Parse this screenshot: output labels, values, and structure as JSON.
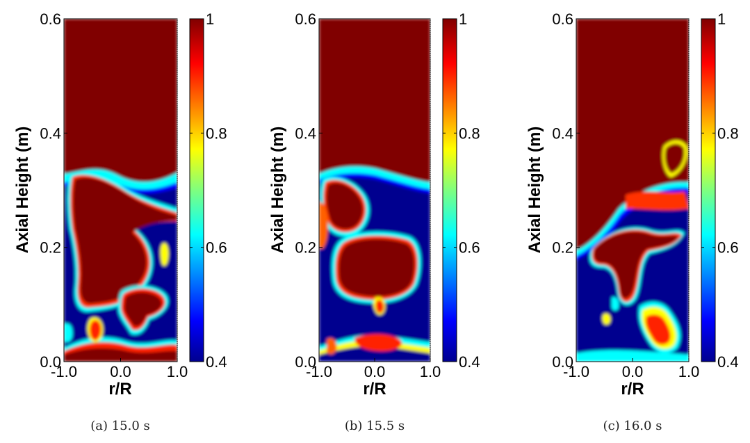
{
  "chart_data": [
    {
      "type": "heatmap",
      "caption": "(a) 15.0 s",
      "xlabel": "r/R",
      "ylabel": "Axial Height (m)",
      "xlim": [
        -1.0,
        1.0
      ],
      "ylim": [
        0.0,
        0.6
      ],
      "x_ticks": [
        "-1.0",
        "0.0",
        "1.0"
      ],
      "y_ticks": [
        "0.0",
        "0.2",
        "0.4",
        "0.6"
      ],
      "colorbar": {
        "range": [
          0.4,
          1.0
        ],
        "ticks": [
          "0.4",
          "0.6",
          "0.8",
          "1"
        ]
      },
      "colormap": "jet"
    },
    {
      "type": "heatmap",
      "caption": "(b) 15.5 s",
      "xlabel": "r/R",
      "ylabel": "Axial Height (m)",
      "xlim": [
        -1.0,
        1.0
      ],
      "ylim": [
        0.0,
        0.6
      ],
      "x_ticks": [
        "-1.0",
        "0.0",
        "1.0"
      ],
      "y_ticks": [
        "0.0",
        "0.2",
        "0.4",
        "0.6"
      ],
      "colorbar": {
        "range": [
          0.4,
          1.0
        ],
        "ticks": [
          "0.4",
          "0.6",
          "0.8",
          "1"
        ]
      },
      "colormap": "jet"
    },
    {
      "type": "heatmap",
      "caption": "(c) 16.0 s",
      "xlabel": "r/R",
      "ylabel": "Axial Height (m)",
      "xlim": [
        -1.0,
        1.0
      ],
      "ylim": [
        0.0,
        0.6
      ],
      "x_ticks": [
        "-1.0",
        "0.0",
        "1.0"
      ],
      "y_ticks": [
        "0.0",
        "0.2",
        "0.4",
        "0.6"
      ],
      "colorbar": {
        "range": [
          0.4,
          1.0
        ],
        "ticks": [
          "0.4",
          "0.6",
          "0.8",
          "1"
        ]
      },
      "colormap": "jet"
    }
  ],
  "colors": {
    "dark_red": "#800000",
    "red": "#ff2000",
    "yellow": "#ffff00",
    "cyan": "#00ffff",
    "blue": "#0000ff",
    "dark_blue": "#00008f"
  }
}
